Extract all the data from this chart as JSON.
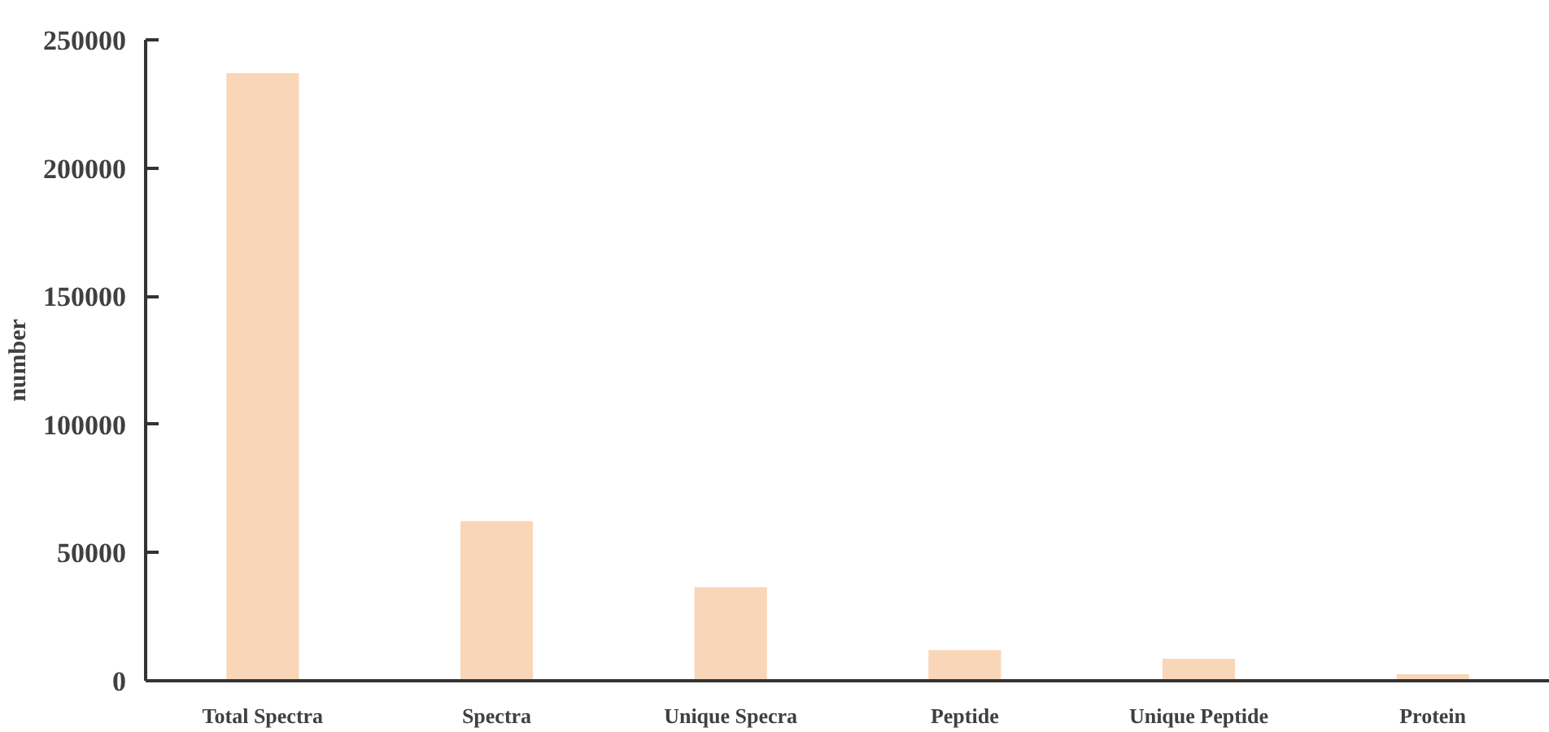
{
  "chart_data": {
    "type": "bar",
    "ylabel": "number",
    "categories": [
      "Total Spectra",
      "Spectra",
      "Unique Specra",
      "Peptide",
      "Unique Peptide",
      "Protein"
    ],
    "values": [
      237000,
      62300,
      36500,
      12000,
      8600,
      2500
    ],
    "color": "#f9d6b8",
    "ylim": [
      0,
      250000
    ],
    "yticks": [
      0,
      50000,
      100000,
      150000,
      200000,
      250000
    ],
    "grid": false
  }
}
